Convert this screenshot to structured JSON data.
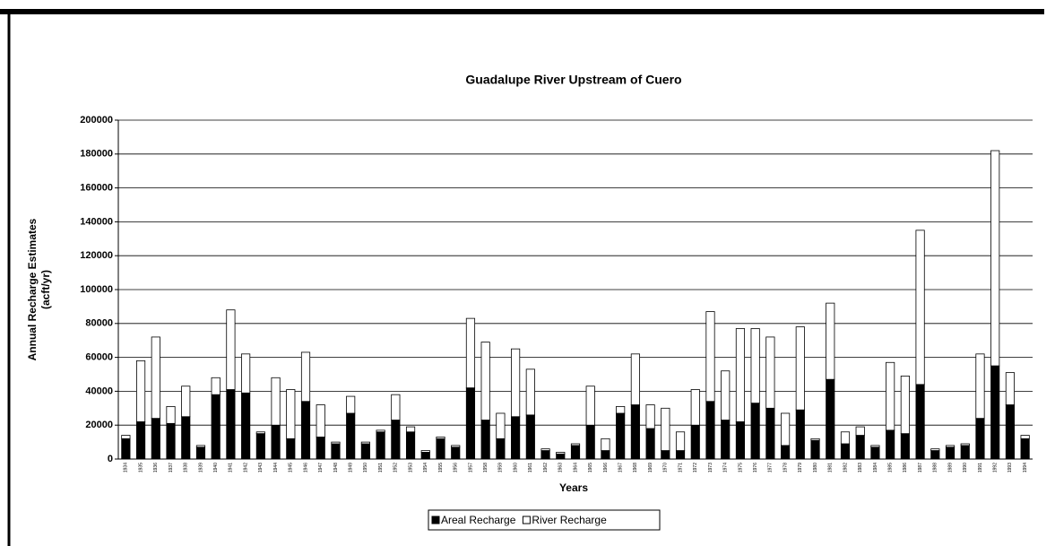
{
  "chart_data": {
    "type": "stacked_bar",
    "title": "Guadalupe River Upstream of Cuero",
    "ylabel": [
      "Annual Recharge Estimates",
      "(acft/yr)"
    ],
    "xlabel": "Years",
    "categories": [
      "1934",
      "1935",
      "1936",
      "1937",
      "1938",
      "1939",
      "1940",
      "1941",
      "1942",
      "1943",
      "1944",
      "1945",
      "1946",
      "1947",
      "1948",
      "1949",
      "1950",
      "1951",
      "1952",
      "1953",
      "1954",
      "1955",
      "1956",
      "1957",
      "1958",
      "1959",
      "1960",
      "1961",
      "1962",
      "1963",
      "1964",
      "1965",
      "1966",
      "1967",
      "1968",
      "1969",
      "1970",
      "1971",
      "1972",
      "1973",
      "1974",
      "1975",
      "1976",
      "1977",
      "1978",
      "1979",
      "1980",
      "1981",
      "1982",
      "1983",
      "1984",
      "1985",
      "1986",
      "1987",
      "1988",
      "1989",
      "1990",
      "1991",
      "1992",
      "1993",
      "1994"
    ],
    "series": [
      {
        "name": "Areal Recharge",
        "color": "#000000",
        "values": [
          12000,
          22000,
          24000,
          21000,
          25000,
          7000,
          38000,
          41000,
          39000,
          15000,
          20000,
          12000,
          34000,
          13000,
          9000,
          27000,
          9000,
          16000,
          23000,
          16000,
          4000,
          12000,
          7000,
          42000,
          23000,
          12000,
          25000,
          26000,
          5000,
          3000,
          8000,
          20000,
          5000,
          27000,
          32000,
          18000,
          5000,
          5000,
          20000,
          34000,
          23000,
          22000,
          33000,
          30000,
          8000,
          29000,
          11000,
          47000,
          9000,
          14000,
          7000,
          17000,
          15000,
          44000,
          5000,
          7000,
          8000,
          24000,
          55000,
          32000,
          12000
        ]
      },
      {
        "name": "River Recharge",
        "color": "#ffffff",
        "values": [
          2000,
          36000,
          48000,
          10000,
          18000,
          1000,
          10000,
          47000,
          23000,
          1000,
          28000,
          29000,
          29000,
          19000,
          1000,
          10000,
          1000,
          1000,
          15000,
          3000,
          1000,
          1000,
          1000,
          41000,
          46000,
          15000,
          40000,
          27000,
          1000,
          1000,
          1000,
          23000,
          7000,
          4000,
          30000,
          14000,
          25000,
          11000,
          21000,
          53000,
          29000,
          55000,
          44000,
          42000,
          19000,
          49000,
          1000,
          45000,
          7000,
          5000,
          1000,
          40000,
          34000,
          91000,
          1000,
          1000,
          1000,
          38000,
          127000,
          19000,
          2000
        ]
      }
    ],
    "ylim": [
      0,
      200000
    ],
    "yticks": [
      0,
      20000,
      40000,
      60000,
      80000,
      100000,
      120000,
      140000,
      160000,
      180000,
      200000
    ],
    "grid": true,
    "legend": "bottom"
  }
}
